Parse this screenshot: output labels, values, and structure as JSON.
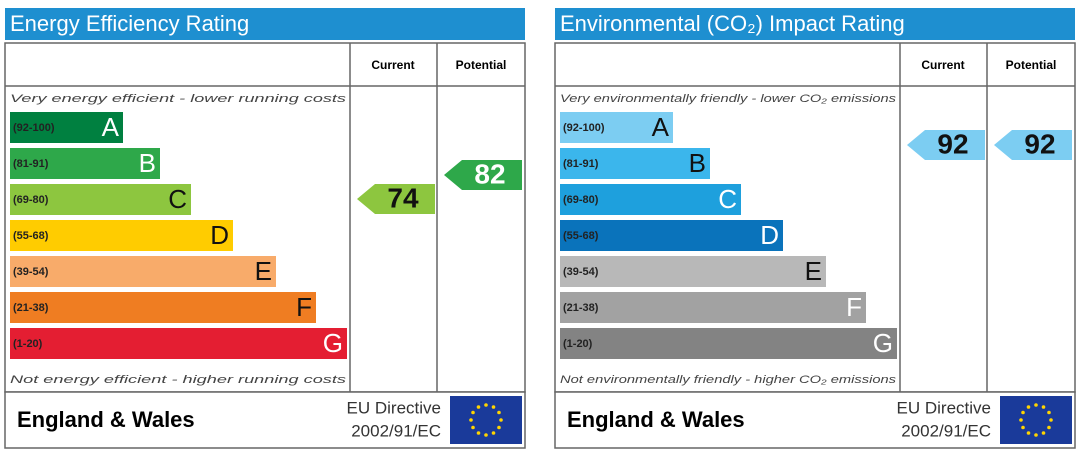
{
  "panels": [
    {
      "title": "Energy Efficiency Rating",
      "header": {
        "current": "Current",
        "potential": "Potential"
      },
      "top_note": "Very energy efficient - lower running costs",
      "bands": [
        {
          "range": "(92-100)",
          "letter": "A"
        },
        {
          "range": "(81-91)",
          "letter": "B"
        },
        {
          "range": "(69-80)",
          "letter": "C"
        },
        {
          "range": "(55-68)",
          "letter": "D"
        },
        {
          "range": "(39-54)",
          "letter": "E"
        },
        {
          "range": "(21-38)",
          "letter": "F"
        },
        {
          "range": "(1-20)",
          "letter": "G"
        }
      ],
      "bottom_note": "Not energy efficient - higher running costs",
      "current": 74,
      "potential": 82,
      "footer": {
        "region": "England & Wales",
        "directive_line1": "EU Directive",
        "directive_line2": "2002/91/EC"
      }
    },
    {
      "title": "Environmental (CO₂) Impact Rating",
      "header": {
        "current": "Current",
        "potential": "Potential"
      },
      "top_note": "Very environmentally friendly - lower CO₂ emissions",
      "bands": [
        {
          "range": "(92-100)",
          "letter": "A"
        },
        {
          "range": "(81-91)",
          "letter": "B"
        },
        {
          "range": "(69-80)",
          "letter": "C"
        },
        {
          "range": "(55-68)",
          "letter": "D"
        },
        {
          "range": "(39-54)",
          "letter": "E"
        },
        {
          "range": "(21-38)",
          "letter": "F"
        },
        {
          "range": "(1-20)",
          "letter": "G"
        }
      ],
      "bottom_note": "Not environmentally friendly - higher CO₂ emissions",
      "current": 92,
      "potential": 92,
      "footer": {
        "region": "England & Wales",
        "directive_line1": "EU Directive",
        "directive_line2": "2002/91/EC"
      }
    }
  ]
}
